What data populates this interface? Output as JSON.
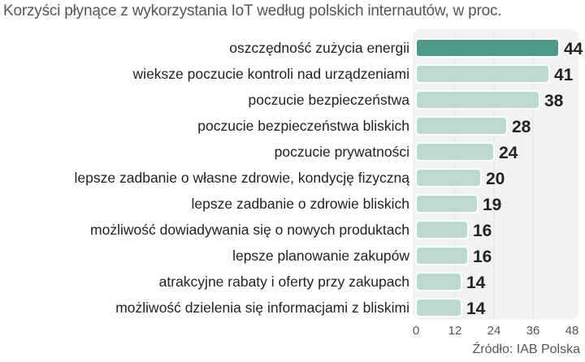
{
  "chart_data": {
    "type": "bar",
    "orientation": "horizontal",
    "title": "Korzyści płynące z wykorzystania IoT według polskich internautów, w proc.",
    "source": "Źródło: IAB Polska",
    "categories": [
      "oszczędność zużycia energii",
      "wieksze poczucie kontroli nad urządzeniami",
      "poczucie bezpieczeństwa",
      "poczucie bezpieczeństwa bliskich",
      "poczucie prywatności",
      "lepsze zadbanie o własne zdrowie, kondycję fizyczną",
      "lepsze zadbanie o zdrowie bliskich",
      "możliwość dowiadywania się o nowych produktach",
      "lepsze planowanie zakupów",
      "atrakcyjne rabaty i oferty przy zakupach",
      "możliwość dzielenia się informacjami z bliskimi"
    ],
    "values": [
      44,
      41,
      38,
      28,
      24,
      20,
      19,
      16,
      16,
      14,
      14
    ],
    "xlim": [
      0,
      48
    ],
    "xticks": [
      "0",
      "12",
      "24",
      "36",
      "48"
    ],
    "grid": true,
    "colors": {
      "highlight": "#4e9b8c",
      "bar": "#bcdad2",
      "panel": "#f2f2f2",
      "grid": "#e2e2e2"
    }
  }
}
